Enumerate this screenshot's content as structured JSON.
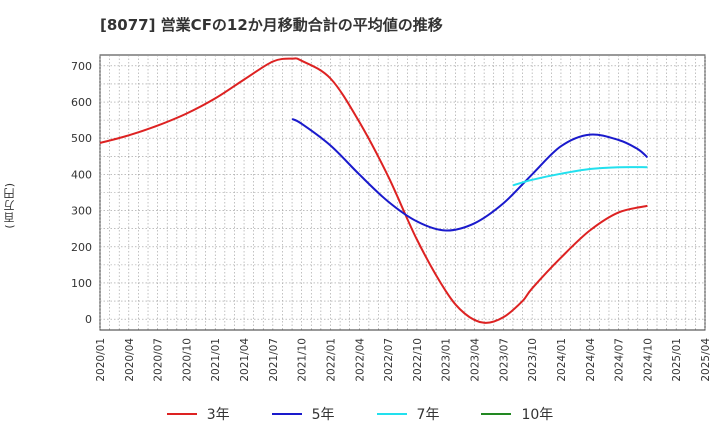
{
  "chart_data": {
    "type": "line",
    "title": "[8077]  営業CFの12か月移動合計の平均値の推移",
    "ylabel": "(百万円)",
    "ylim": [
      -30,
      730
    ],
    "yticks": [
      0,
      100,
      200,
      300,
      400,
      500,
      600,
      700
    ],
    "grid": true,
    "legend_position": "bottom",
    "x_tick_labels": [
      "2020/01",
      "2020/04",
      "2020/07",
      "2020/10",
      "2021/01",
      "2021/04",
      "2021/07",
      "2021/10",
      "2022/01",
      "2022/04",
      "2022/07",
      "2022/10",
      "2023/01",
      "2023/04",
      "2023/07",
      "2023/10",
      "2024/01",
      "2024/04",
      "2024/07",
      "2024/10",
      "2025/01",
      "2025/04"
    ],
    "series": [
      {
        "name": "3年",
        "color": "#dd2222",
        "points": [
          [
            "2020/01",
            487
          ],
          [
            "2020/04",
            508
          ],
          [
            "2020/07",
            535
          ],
          [
            "2020/10",
            568
          ],
          [
            "2021/01",
            610
          ],
          [
            "2021/04",
            662
          ],
          [
            "2021/07",
            712
          ],
          [
            "2021/09",
            720
          ],
          [
            "2021/10",
            714
          ],
          [
            "2022/01",
            665
          ],
          [
            "2022/04",
            545
          ],
          [
            "2022/07",
            395
          ],
          [
            "2022/10",
            220
          ],
          [
            "2023/01",
            78
          ],
          [
            "2023/03",
            15
          ],
          [
            "2023/05",
            -10
          ],
          [
            "2023/07",
            5
          ],
          [
            "2023/09",
            50
          ],
          [
            "2023/10",
            85
          ],
          [
            "2024/01",
            170
          ],
          [
            "2024/04",
            245
          ],
          [
            "2024/07",
            295
          ],
          [
            "2024/10",
            313
          ]
        ]
      },
      {
        "name": "5年",
        "color": "#1a1acc",
        "points": [
          [
            "2021/09",
            553
          ],
          [
            "2021/10",
            540
          ],
          [
            "2022/01",
            480
          ],
          [
            "2022/04",
            400
          ],
          [
            "2022/07",
            325
          ],
          [
            "2022/10",
            270
          ],
          [
            "2023/01",
            245
          ],
          [
            "2023/04",
            265
          ],
          [
            "2023/07",
            320
          ],
          [
            "2023/10",
            400
          ],
          [
            "2024/01",
            478
          ],
          [
            "2024/04",
            510
          ],
          [
            "2024/07",
            495
          ],
          [
            "2024/09",
            470
          ],
          [
            "2024/10",
            447
          ]
        ]
      },
      {
        "name": "7年",
        "color": "#22e0ee",
        "points": [
          [
            "2023/08",
            370
          ],
          [
            "2023/10",
            385
          ],
          [
            "2024/01",
            402
          ],
          [
            "2024/04",
            415
          ],
          [
            "2024/07",
            420
          ],
          [
            "2024/10",
            420
          ]
        ]
      },
      {
        "name": "10年",
        "color": "#228822",
        "points": []
      }
    ]
  }
}
